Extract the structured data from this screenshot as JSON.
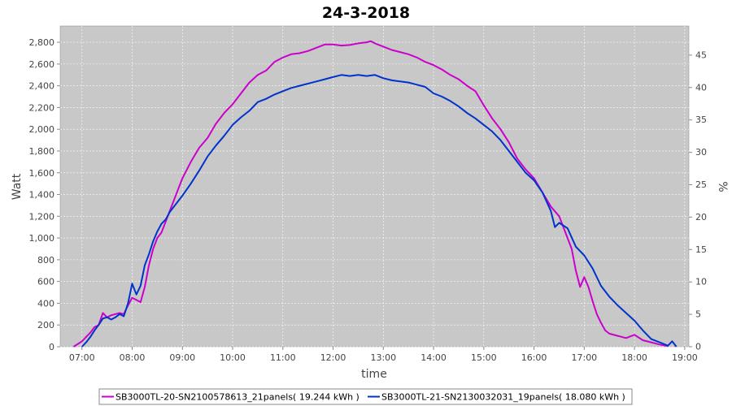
{
  "chart_data": {
    "type": "line",
    "title": "24-3-2018",
    "xlabel": "time",
    "ylabel": "Watt",
    "y2label": "%",
    "xlim": [
      "06:34",
      "19:05"
    ],
    "ylim": [
      0,
      2950
    ],
    "y2lim": [
      0,
      49.5
    ],
    "x_ticks": [
      "07:00",
      "08:00",
      "09:00",
      "10:00",
      "11:00",
      "12:00",
      "13:00",
      "14:00",
      "15:00",
      "16:00",
      "17:00",
      "18:00",
      "19:00"
    ],
    "y_ticks": [
      0,
      200,
      400,
      600,
      800,
      1000,
      1200,
      1400,
      1600,
      1800,
      2000,
      2200,
      2400,
      2600,
      2800
    ],
    "y_tick_labels": [
      "0",
      "200",
      "400",
      "600",
      "800",
      "1,000",
      "1,200",
      "1,400",
      "1,600",
      "1,800",
      "2,000",
      "2,200",
      "2,400",
      "2,600",
      "2,800"
    ],
    "y2_ticks": [
      0,
      5,
      10,
      15,
      20,
      25,
      30,
      35,
      40,
      45
    ],
    "grid": true,
    "plot_background": "#c8c8c8",
    "legend_position": "bottom",
    "series": [
      {
        "label": "SB3000TL-20-SN2100578613_21panels( 19.244 kWh )",
        "color": "#cc00cc",
        "points": [
          [
            "06:50",
            0
          ],
          [
            "07:00",
            50
          ],
          [
            "07:10",
            130
          ],
          [
            "07:15",
            180
          ],
          [
            "07:20",
            200
          ],
          [
            "07:25",
            310
          ],
          [
            "07:30",
            270
          ],
          [
            "07:35",
            290
          ],
          [
            "07:40",
            300
          ],
          [
            "07:45",
            310
          ],
          [
            "07:50",
            300
          ],
          [
            "07:55",
            380
          ],
          [
            "08:00",
            450
          ],
          [
            "08:05",
            430
          ],
          [
            "08:10",
            410
          ],
          [
            "08:15",
            550
          ],
          [
            "08:20",
            750
          ],
          [
            "08:25",
            900
          ],
          [
            "08:30",
            1000
          ],
          [
            "08:35",
            1050
          ],
          [
            "08:40",
            1150
          ],
          [
            "08:45",
            1250
          ],
          [
            "08:50",
            1350
          ],
          [
            "08:55",
            1450
          ],
          [
            "09:00",
            1550
          ],
          [
            "09:10",
            1700
          ],
          [
            "09:20",
            1830
          ],
          [
            "09:30",
            1920
          ],
          [
            "09:40",
            2050
          ],
          [
            "09:50",
            2150
          ],
          [
            "10:00",
            2230
          ],
          [
            "10:10",
            2330
          ],
          [
            "10:20",
            2430
          ],
          [
            "10:30",
            2500
          ],
          [
            "10:40",
            2540
          ],
          [
            "10:50",
            2620
          ],
          [
            "11:00",
            2660
          ],
          [
            "11:10",
            2690
          ],
          [
            "11:20",
            2700
          ],
          [
            "11:30",
            2720
          ],
          [
            "11:40",
            2750
          ],
          [
            "11:50",
            2780
          ],
          [
            "12:00",
            2780
          ],
          [
            "12:10",
            2770
          ],
          [
            "12:20",
            2775
          ],
          [
            "12:30",
            2790
          ],
          [
            "12:40",
            2800
          ],
          [
            "12:45",
            2810
          ],
          [
            "12:50",
            2790
          ],
          [
            "13:00",
            2760
          ],
          [
            "13:10",
            2730
          ],
          [
            "13:20",
            2710
          ],
          [
            "13:30",
            2690
          ],
          [
            "13:40",
            2660
          ],
          [
            "13:50",
            2620
          ],
          [
            "14:00",
            2590
          ],
          [
            "14:10",
            2550
          ],
          [
            "14:20",
            2500
          ],
          [
            "14:30",
            2460
          ],
          [
            "14:40",
            2400
          ],
          [
            "14:50",
            2350
          ],
          [
            "15:00",
            2220
          ],
          [
            "15:10",
            2100
          ],
          [
            "15:20",
            2000
          ],
          [
            "15:30",
            1880
          ],
          [
            "15:40",
            1730
          ],
          [
            "15:50",
            1630
          ],
          [
            "16:00",
            1550
          ],
          [
            "16:10",
            1420
          ],
          [
            "16:20",
            1290
          ],
          [
            "16:30",
            1200
          ],
          [
            "16:40",
            1000
          ],
          [
            "16:45",
            900
          ],
          [
            "16:50",
            700
          ],
          [
            "16:55",
            550
          ],
          [
            "17:00",
            640
          ],
          [
            "17:05",
            550
          ],
          [
            "17:10",
            420
          ],
          [
            "17:15",
            300
          ],
          [
            "17:20",
            220
          ],
          [
            "17:25",
            150
          ],
          [
            "17:30",
            120
          ],
          [
            "17:40",
            100
          ],
          [
            "17:50",
            80
          ],
          [
            "18:00",
            110
          ],
          [
            "18:10",
            60
          ],
          [
            "18:20",
            40
          ],
          [
            "18:30",
            20
          ],
          [
            "18:40",
            5
          ]
        ]
      },
      {
        "label": "SB3000TL-21-SN2130032031_19panels( 18.080 kWh )",
        "color": "#0033cc",
        "points": [
          [
            "07:00",
            0
          ],
          [
            "07:05",
            40
          ],
          [
            "07:10",
            90
          ],
          [
            "07:15",
            150
          ],
          [
            "07:20",
            200
          ],
          [
            "07:25",
            260
          ],
          [
            "07:30",
            270
          ],
          [
            "07:35",
            250
          ],
          [
            "07:40",
            270
          ],
          [
            "07:45",
            300
          ],
          [
            "07:50",
            280
          ],
          [
            "07:55",
            400
          ],
          [
            "08:00",
            580
          ],
          [
            "08:05",
            480
          ],
          [
            "08:10",
            560
          ],
          [
            "08:15",
            750
          ],
          [
            "08:20",
            850
          ],
          [
            "08:25",
            970
          ],
          [
            "08:30",
            1060
          ],
          [
            "08:35",
            1130
          ],
          [
            "08:40",
            1170
          ],
          [
            "08:45",
            1240
          ],
          [
            "08:50",
            1290
          ],
          [
            "08:55",
            1340
          ],
          [
            "09:00",
            1390
          ],
          [
            "09:10",
            1500
          ],
          [
            "09:20",
            1620
          ],
          [
            "09:30",
            1750
          ],
          [
            "09:40",
            1850
          ],
          [
            "09:50",
            1940
          ],
          [
            "10:00",
            2040
          ],
          [
            "10:10",
            2110
          ],
          [
            "10:20",
            2170
          ],
          [
            "10:30",
            2250
          ],
          [
            "10:40",
            2280
          ],
          [
            "10:50",
            2320
          ],
          [
            "11:00",
            2350
          ],
          [
            "11:10",
            2380
          ],
          [
            "11:20",
            2400
          ],
          [
            "11:30",
            2420
          ],
          [
            "11:40",
            2440
          ],
          [
            "11:50",
            2460
          ],
          [
            "12:00",
            2480
          ],
          [
            "12:10",
            2500
          ],
          [
            "12:20",
            2490
          ],
          [
            "12:30",
            2500
          ],
          [
            "12:40",
            2490
          ],
          [
            "12:50",
            2500
          ],
          [
            "13:00",
            2470
          ],
          [
            "13:10",
            2450
          ],
          [
            "13:20",
            2440
          ],
          [
            "13:30",
            2430
          ],
          [
            "13:40",
            2410
          ],
          [
            "13:50",
            2390
          ],
          [
            "14:00",
            2330
          ],
          [
            "14:10",
            2300
          ],
          [
            "14:20",
            2260
          ],
          [
            "14:30",
            2210
          ],
          [
            "14:40",
            2150
          ],
          [
            "14:50",
            2100
          ],
          [
            "15:00",
            2040
          ],
          [
            "15:10",
            1980
          ],
          [
            "15:20",
            1900
          ],
          [
            "15:30",
            1800
          ],
          [
            "15:40",
            1700
          ],
          [
            "15:50",
            1600
          ],
          [
            "16:00",
            1530
          ],
          [
            "16:10",
            1420
          ],
          [
            "16:20",
            1250
          ],
          [
            "16:25",
            1100
          ],
          [
            "16:30",
            1140
          ],
          [
            "16:40",
            1090
          ],
          [
            "16:50",
            920
          ],
          [
            "17:00",
            840
          ],
          [
            "17:10",
            720
          ],
          [
            "17:20",
            560
          ],
          [
            "17:30",
            460
          ],
          [
            "17:40",
            380
          ],
          [
            "17:50",
            310
          ],
          [
            "18:00",
            240
          ],
          [
            "18:10",
            150
          ],
          [
            "18:20",
            70
          ],
          [
            "18:30",
            40
          ],
          [
            "18:40",
            10
          ],
          [
            "18:45",
            50
          ],
          [
            "18:50",
            0
          ]
        ]
      }
    ]
  }
}
